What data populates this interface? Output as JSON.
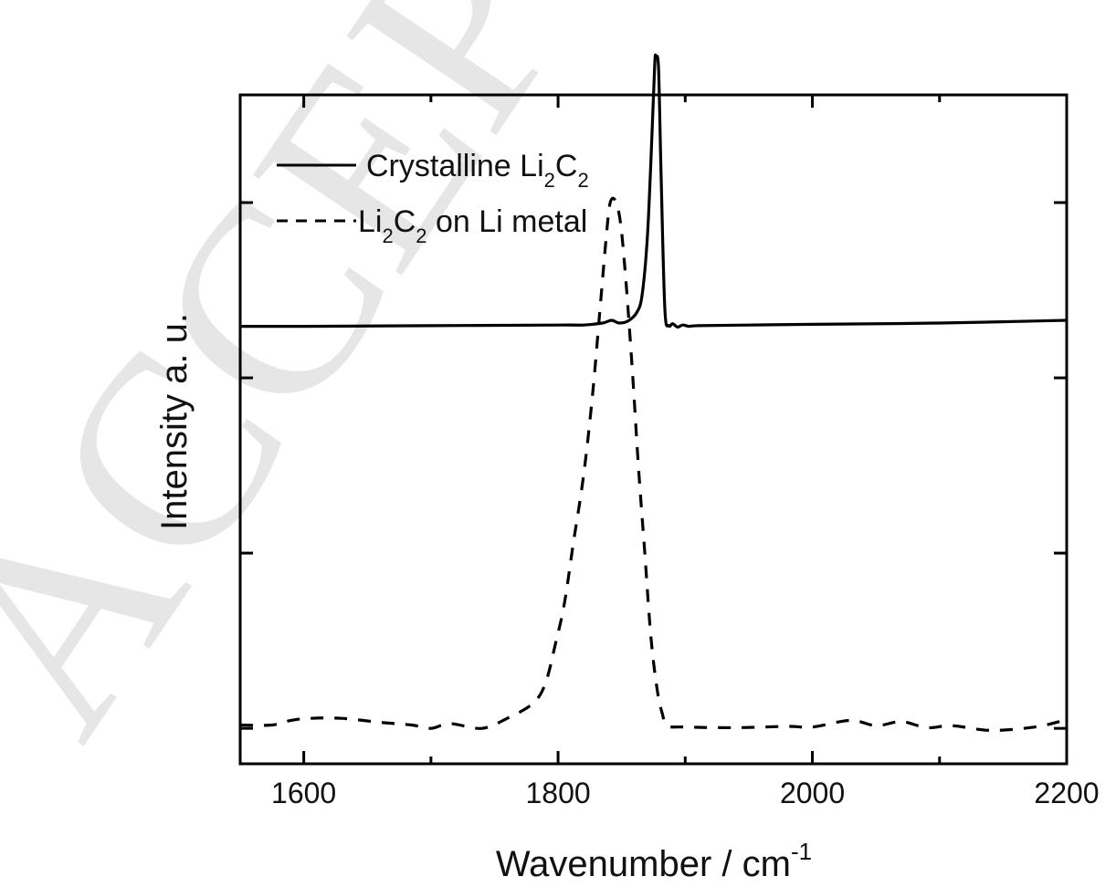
{
  "watermark": {
    "text": "ACCEPTED",
    "color": "#e6e6e6"
  },
  "chart_data": {
    "type": "line",
    "title": "",
    "xlabel": "Wavenumber / cm",
    "xlabel_superscript": "-1",
    "ylabel": "Intensity a. u.",
    "xlim": [
      1550,
      2200
    ],
    "ylim": [
      0,
      1
    ],
    "x_major_ticks": [
      1600,
      1800,
      2000,
      2200
    ],
    "x_minor_ticks": [
      1700,
      1900,
      2100
    ],
    "y_ticks_unlabeled": [
      0.053,
      0.315,
      0.577,
      0.839
    ],
    "grid": false,
    "legend_position": "upper left",
    "series": [
      {
        "name": "Crystalline Li2C2",
        "legend_main": "Crystalline Li",
        "legend_sub1": "2",
        "legend_mid": "C",
        "legend_sub2": "2",
        "legend_rest": "",
        "style": "solid",
        "color": "#000000",
        "x": [
          1550,
          1600,
          1700,
          1800,
          1820,
          1835,
          1842,
          1848,
          1855,
          1862,
          1866,
          1870,
          1873,
          1876,
          1877,
          1879,
          1881,
          1884,
          1887,
          1890,
          1894,
          1898,
          1903,
          1910,
          1950,
          2000,
          2100,
          2200
        ],
        "y": [
          0.654,
          0.654,
          0.655,
          0.656,
          0.656,
          0.659,
          0.663,
          0.659,
          0.662,
          0.675,
          0.7,
          0.78,
          0.9,
          1.045,
          1.064,
          1.04,
          0.88,
          0.68,
          0.655,
          0.658,
          0.653,
          0.656,
          0.654,
          0.655,
          0.656,
          0.657,
          0.659,
          0.663
        ]
      },
      {
        "name": "Li2C2 on Li metal",
        "legend_main": "Li",
        "legend_sub1": "2",
        "legend_mid": "C",
        "legend_sub2": "2",
        "legend_rest": " on Li metal",
        "style": "dashed",
        "color": "#000000",
        "x": [
          1550,
          1575,
          1590,
          1605,
          1630,
          1660,
          1685,
          1700,
          1715,
          1740,
          1760,
          1780,
          1790,
          1798,
          1805,
          1812,
          1820,
          1827,
          1833,
          1838,
          1841,
          1845,
          1849,
          1853,
          1858,
          1863,
          1868,
          1873,
          1878,
          1882,
          1886,
          1900,
          1940,
          1980,
          2000,
          2030,
          2050,
          2070,
          2090,
          2110,
          2140,
          2175,
          2200
        ],
        "y": [
          0.058,
          0.058,
          0.065,
          0.068,
          0.068,
          0.062,
          0.058,
          0.053,
          0.06,
          0.053,
          0.068,
          0.09,
          0.12,
          0.18,
          0.24,
          0.33,
          0.43,
          0.55,
          0.68,
          0.79,
          0.839,
          0.842,
          0.81,
          0.73,
          0.6,
          0.45,
          0.32,
          0.19,
          0.11,
          0.075,
          0.057,
          0.055,
          0.054,
          0.056,
          0.055,
          0.065,
          0.057,
          0.063,
          0.054,
          0.057,
          0.05,
          0.055,
          0.066
        ]
      }
    ]
  }
}
